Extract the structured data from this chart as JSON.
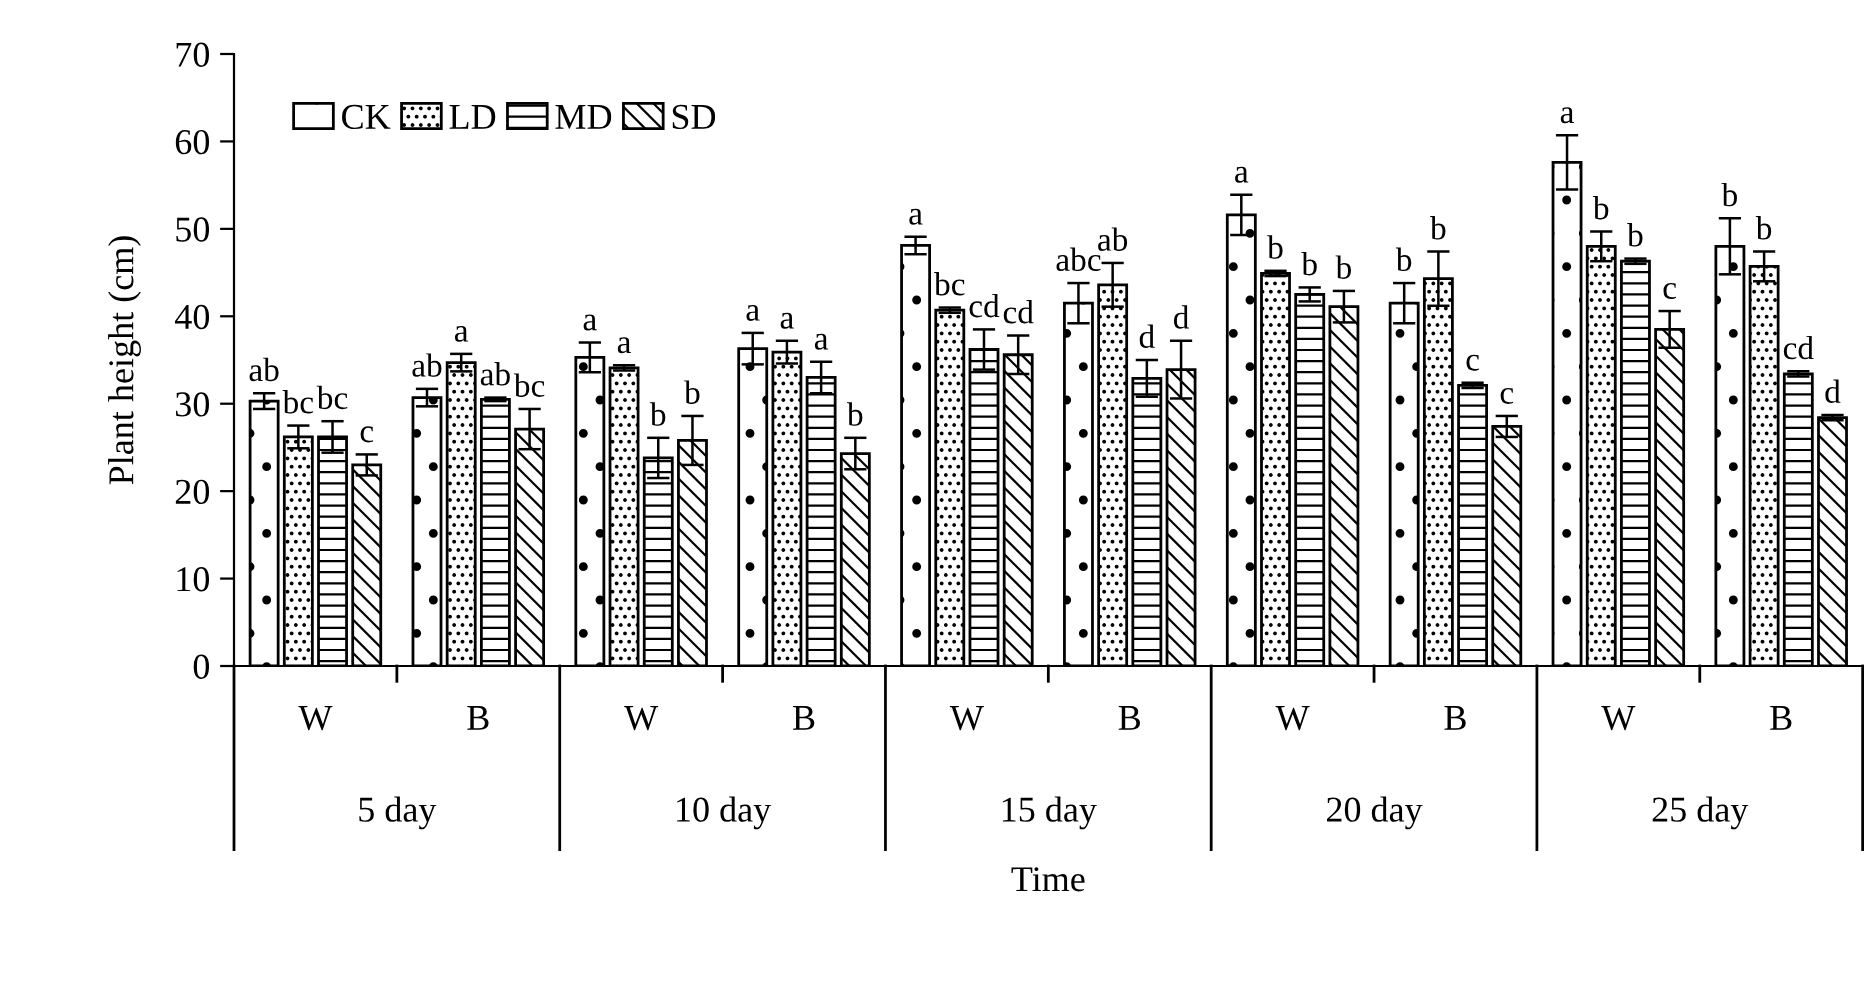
{
  "chart_data": {
    "type": "bar",
    "xlabel": "Time",
    "ylabel": "Plant height (cm)",
    "categories": [
      "W",
      "B",
      "W",
      "B",
      "W",
      "B",
      "W",
      "B",
      "W",
      "B"
    ],
    "annotations": [
      "5 day",
      "10 day",
      "15 day",
      "20 day",
      "25 day"
    ],
    "ylim": [
      0,
      70
    ],
    "yticks": [
      0,
      10,
      20,
      30,
      40,
      50,
      60,
      70
    ],
    "grid": false,
    "legend": "top left",
    "series": [
      {
        "name": "CK",
        "color": "#000000",
        "values": [
          30.3,
          30.7,
          35.3,
          36.3,
          48.1,
          41.5,
          51.6,
          41.5,
          57.6,
          48.0
        ],
        "errors": [
          0.9,
          1.0,
          1.7,
          1.8,
          1.0,
          2.3,
          2.3,
          2.3,
          3.1,
          3.2
        ],
        "value_labels": [
          "ab",
          "ab",
          "a",
          "a",
          "a",
          "abc",
          "a",
          "b",
          "a",
          "b"
        ]
      },
      {
        "name": "LD",
        "color": "#000000",
        "values": [
          26.2,
          34.7,
          34.1,
          35.9,
          40.7,
          43.6,
          44.9,
          44.3,
          48.0,
          45.7
        ],
        "errors": [
          1.3,
          1.0,
          0.3,
          1.3,
          0.3,
          2.5,
          0.3,
          3.1,
          1.7,
          1.7
        ],
        "value_labels": [
          "bc",
          "a",
          "a",
          "a",
          "bc",
          "ab",
          "b",
          "b",
          "b",
          "b"
        ]
      },
      {
        "name": "MD",
        "color": "#000000",
        "values": [
          26.2,
          30.5,
          23.8,
          33.0,
          36.2,
          32.9,
          42.5,
          32.1,
          46.3,
          33.4
        ],
        "errors": [
          1.8,
          0.2,
          2.3,
          1.8,
          2.3,
          2.1,
          0.8,
          0.3,
          0.3,
          0.3
        ],
        "value_labels": [
          "bc",
          "ab",
          "b",
          "a",
          "cd",
          "d",
          "b",
          "c",
          "b",
          "cd"
        ]
      },
      {
        "name": "SD",
        "color": "#000000",
        "values": [
          23.0,
          27.1,
          25.8,
          24.3,
          35.6,
          33.9,
          41.1,
          27.4,
          38.5,
          28.4
        ],
        "errors": [
          1.2,
          2.3,
          2.8,
          1.8,
          2.2,
          3.3,
          1.8,
          1.2,
          2.1,
          0.3
        ],
        "value_labels": [
          "c",
          "bc",
          "b",
          "b",
          "cd",
          "d",
          "b",
          "c",
          "c",
          "d"
        ]
      }
    ]
  }
}
